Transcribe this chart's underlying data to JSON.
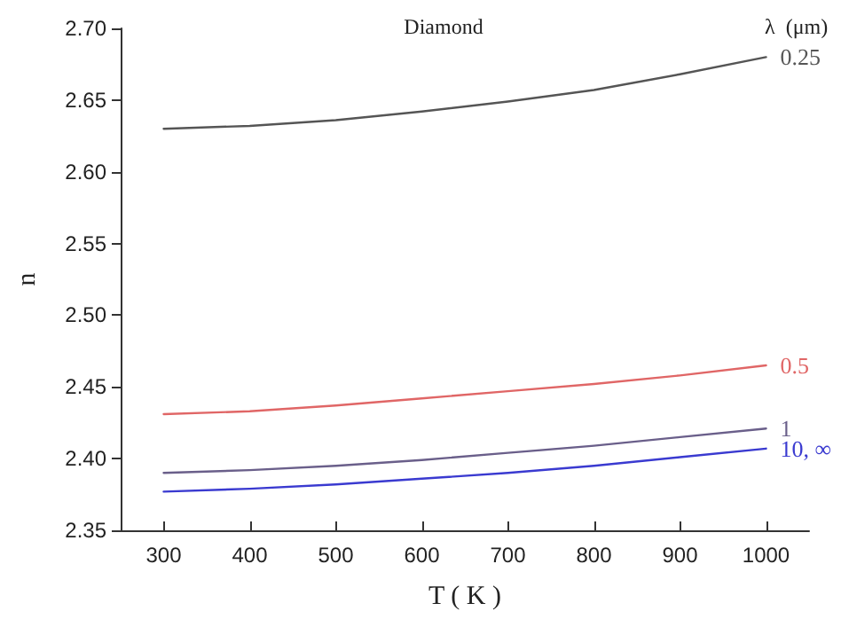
{
  "chart_data": {
    "type": "line",
    "title": "Diamond",
    "xlabel": "T ( K )",
    "ylabel": "n",
    "legend_title": "λ  (μm)",
    "x": [
      300,
      400,
      500,
      600,
      700,
      800,
      900,
      1000
    ],
    "series": [
      {
        "name": "0.25",
        "color": "#555555",
        "values": [
          2.63,
          2.632,
          2.636,
          2.642,
          2.649,
          2.657,
          2.668,
          2.68
        ]
      },
      {
        "name": "0.5",
        "color": "#e06666",
        "values": [
          2.431,
          2.433,
          2.437,
          2.442,
          2.447,
          2.452,
          2.458,
          2.465
        ]
      },
      {
        "name": "1",
        "color": "#6a5f8a",
        "values": [
          2.39,
          2.392,
          2.395,
          2.399,
          2.404,
          2.409,
          2.415,
          2.421
        ]
      },
      {
        "name": "10, ∞",
        "color": "#3a3ad0",
        "values": [
          2.377,
          2.379,
          2.382,
          2.386,
          2.39,
          2.395,
          2.401,
          2.407
        ]
      }
    ],
    "xlim": [
      250,
      1050
    ],
    "xticks": [
      300,
      400,
      500,
      600,
      700,
      800,
      900,
      1000
    ],
    "ylim": [
      2.35,
      2.7
    ],
    "yticks": [
      2.35,
      {
        "value": 2.4,
        "label": "2.40"
      },
      2.45,
      {
        "value": 2.5,
        "label": "2.50"
      },
      2.55,
      {
        "value": 2.6,
        "label": "2.60"
      },
      2.65,
      {
        "value": 2.7,
        "label": "2.70"
      }
    ],
    "grid": false,
    "legend": false,
    "marker": "none",
    "line_style": "solid"
  }
}
